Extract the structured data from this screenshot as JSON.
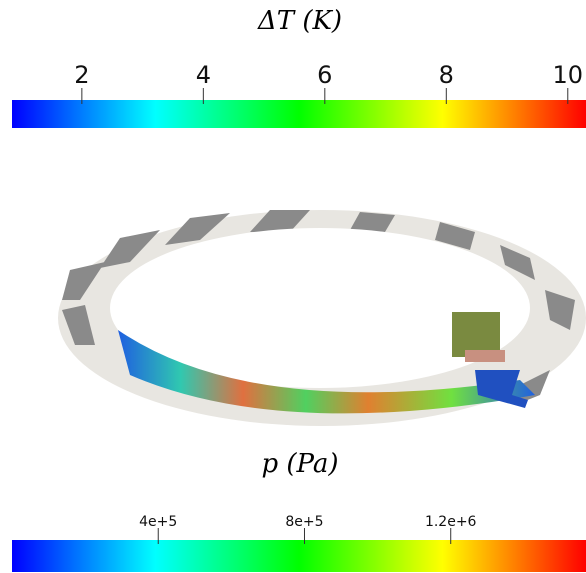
{
  "chart_data": [
    {
      "type": "colorbar",
      "title": "ΔT (K)",
      "xlim": [
        0.85,
        10.3
      ],
      "xticks": [
        2,
        4,
        6,
        8,
        10
      ],
      "colormap": [
        "#0000ff",
        "#0080ff",
        "#00ffff",
        "#00ff80",
        "#00ff00",
        "#80ff00",
        "#ffff00",
        "#ff8000",
        "#ff0000"
      ]
    },
    {
      "type": "colorbar",
      "title": "p (Pa)",
      "xlim": [
        0,
        1570000
      ],
      "xticks": [
        {
          "value": 400000,
          "label": "4e+5"
        },
        {
          "value": 800000,
          "label": "8e+5"
        },
        {
          "value": 1200000,
          "label": "1.2e+6"
        }
      ],
      "colormap": [
        "#0000ff",
        "#0080ff",
        "#00ffff",
        "#00ff80",
        "#00ff00",
        "#80ff00",
        "#ffff00",
        "#ff8000",
        "#ff0000"
      ]
    }
  ]
}
